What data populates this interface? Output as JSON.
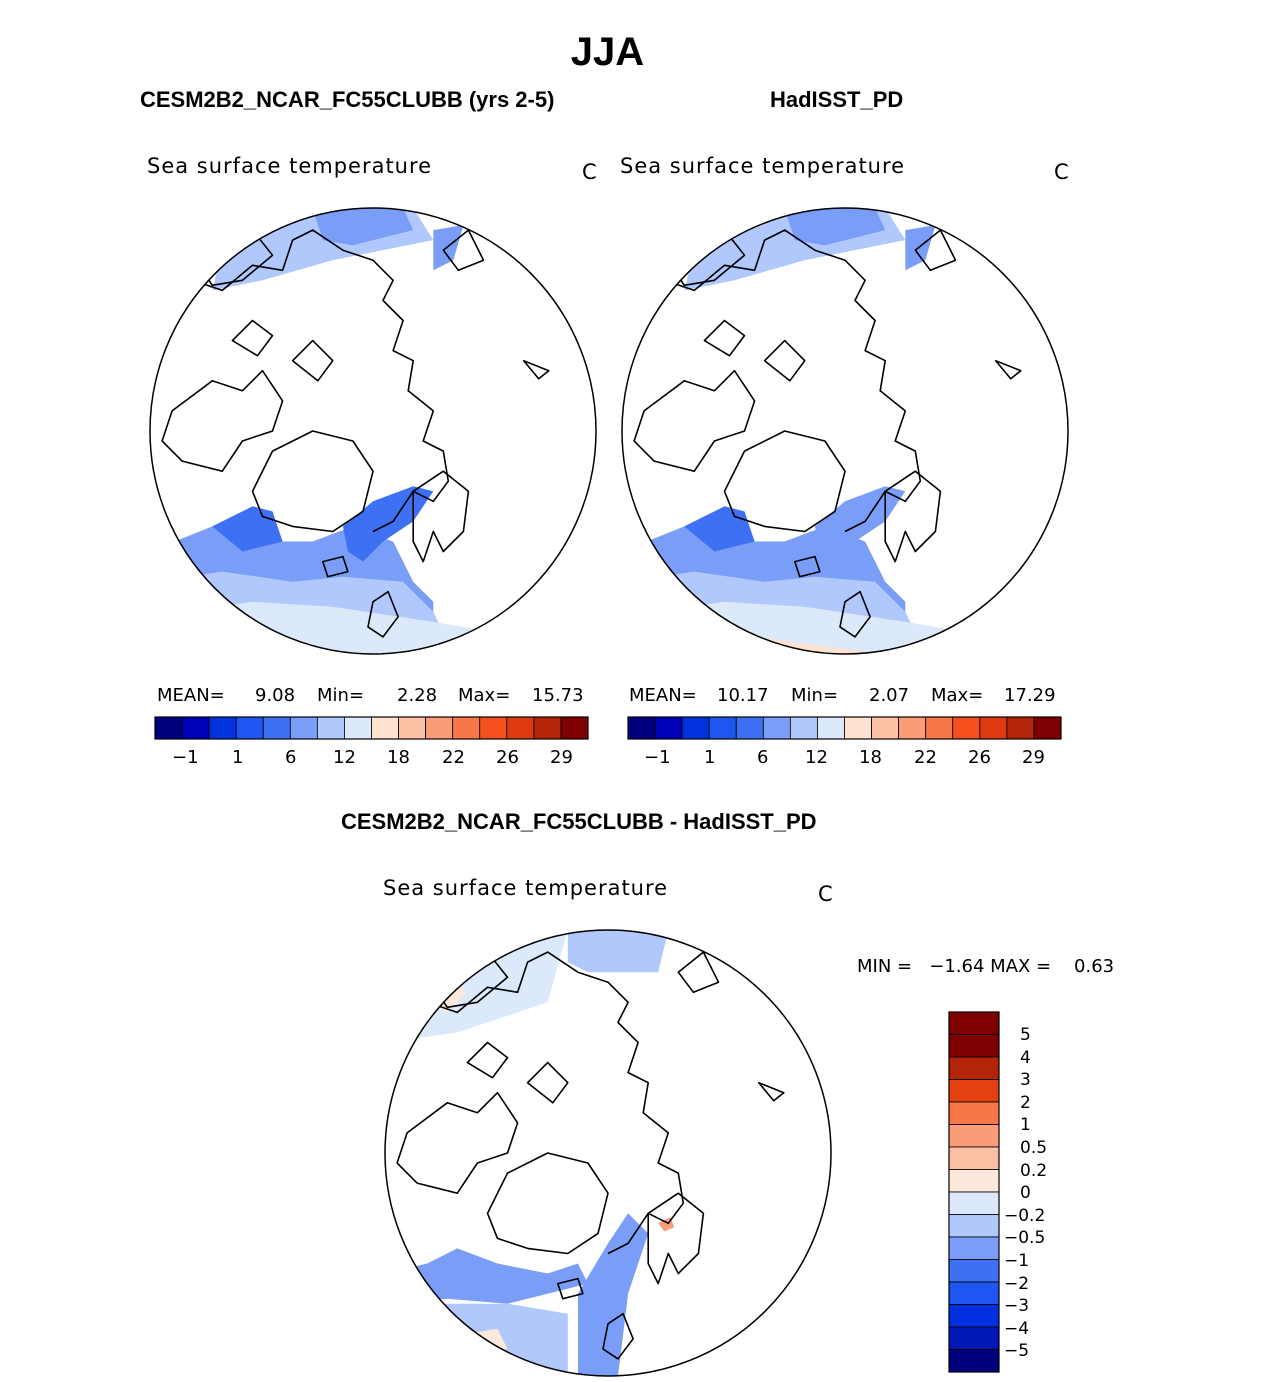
{
  "season": "JJA",
  "colors": {
    "sst_levels": [
      "#00007f",
      "#0000b8",
      "#0033dd",
      "#1f55f0",
      "#3d70f2",
      "#7a9df7",
      "#b0c8fb",
      "#dce9fa",
      "#fde2cf",
      "#fbc0a4",
      "#f99c77",
      "#f77748",
      "#f5501e",
      "#dd3a10",
      "#b22508",
      "#7f0000"
    ],
    "diff_levels": [
      "#00007f",
      "#0018b4",
      "#0030e0",
      "#1f55f0",
      "#3d70f2",
      "#7a9df7",
      "#b0c8fb",
      "#dce9fa",
      "#fde9dc",
      "#fbc0a4",
      "#f99c77",
      "#f77748",
      "#e5400f",
      "#b22508",
      "#7f0000"
    ],
    "land_outline": "#000000",
    "ocean_light": "#dce9fa",
    "ocean_mid": "#b0c8fb",
    "ocean_blue": "#7a9df7",
    "ocean_deep": "#3d70f2"
  },
  "panels": [
    {
      "title": "CESM2B2_NCAR_FC55CLUBB (yrs 2-5)",
      "variable": "Sea surface temperature",
      "units": "C",
      "stats": {
        "mean_label": "MEAN=",
        "mean": "9.08",
        "min_label": "Min=",
        "min": "2.28",
        "max_label": "Max=",
        "max": "15.73"
      },
      "colorbar_ticks": [
        "−1",
        "1",
        "6",
        "12",
        "18",
        "22",
        "26",
        "29"
      ]
    },
    {
      "title": "HadISST_PD",
      "variable": "Sea surface temperature",
      "units": "C",
      "stats": {
        "mean_label": "MEAN=",
        "mean": "10.17",
        "min_label": "Min=",
        "min": "2.07",
        "max_label": "Max=",
        "max": "17.29"
      },
      "colorbar_ticks": [
        "−1",
        "1",
        "6",
        "12",
        "18",
        "22",
        "26",
        "29"
      ]
    }
  ],
  "difference": {
    "title": "CESM2B2_NCAR_FC55CLUBB - HadISST_PD",
    "variable": "Sea surface temperature",
    "units": "C",
    "minmax_text": "MIN =   −1.64 MAX =    0.63",
    "colorbar_labels": [
      "5",
      "4",
      "3",
      "2",
      "1",
      "0.5",
      "0.2",
      "0",
      "−0.2",
      "−0.5",
      "−1",
      "−2",
      "−3",
      "−4",
      "−5"
    ]
  }
}
